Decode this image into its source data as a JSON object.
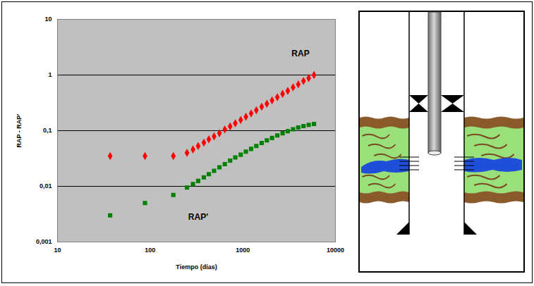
{
  "chart_data": {
    "type": "scatter",
    "x_label": "Tiempo (días)",
    "y_label": "RAP - RAP'",
    "log": true,
    "grid": true,
    "xlim": [
      10,
      10000
    ],
    "xticks": [
      10,
      100,
      1000,
      10000
    ],
    "ylim": [
      0.001,
      10
    ],
    "yticks": [
      10,
      1,
      {
        "value": 0.1,
        "label": "0,1"
      },
      {
        "value": 0.01,
        "label": "0,01"
      },
      {
        "value": 0.001,
        "label": "0,001"
      }
    ],
    "x": [
      37,
      88,
      178,
      250,
      290,
      330,
      380,
      430,
      490,
      560,
      640,
      730,
      830,
      950,
      1080,
      1230,
      1400,
      1600,
      1820,
      2070,
      2360,
      2690,
      3060,
      3490,
      3970,
      4520,
      5150,
      5870
    ],
    "series": [
      {
        "name": "RAP",
        "color": "#ff0000",
        "marker": "diamond",
        "values": [
          0.035,
          0.035,
          0.035,
          0.04,
          0.046,
          0.053,
          0.061,
          0.07,
          0.079,
          0.09,
          0.105,
          0.119,
          0.136,
          0.156,
          0.178,
          0.204,
          0.233,
          0.27,
          0.305,
          0.35,
          0.4,
          0.46,
          0.52,
          0.6,
          0.68,
          0.78,
          0.88,
          1.0
        ]
      },
      {
        "name": "RAP'",
        "color": "#008000",
        "marker": "square",
        "values": [
          0.003,
          0.005,
          0.007,
          0.0095,
          0.011,
          0.0125,
          0.0145,
          0.0165,
          0.019,
          0.022,
          0.025,
          0.029,
          0.033,
          0.037,
          0.042,
          0.047,
          0.053,
          0.06,
          0.067,
          0.074,
          0.082,
          0.09,
          0.098,
          0.106,
          0.114,
          0.121,
          0.127,
          0.132
        ]
      }
    ],
    "annotations": [
      {
        "text": "RAP",
        "x": 4200,
        "y": 2.4
      },
      {
        "text": "RAP'",
        "x": 330,
        "y": 0.0028
      }
    ]
  }
}
